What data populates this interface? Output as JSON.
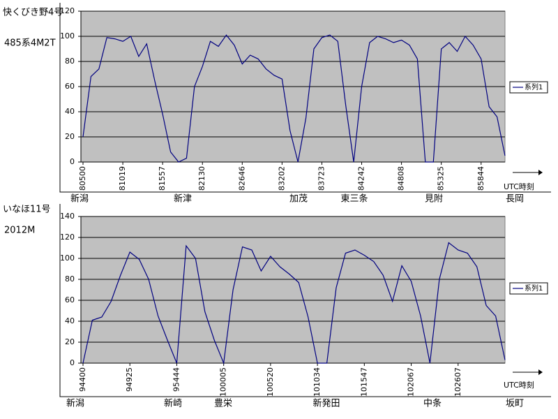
{
  "chart_data": [
    {
      "type": "line",
      "title": "快くびき野4号",
      "subtitle": "485系4M2T",
      "categories": [
        "80500",
        null,
        null,
        null,
        null,
        "81019",
        null,
        null,
        null,
        null,
        "81557",
        null,
        null,
        null,
        null,
        "82130",
        null,
        null,
        null,
        null,
        "82646",
        null,
        null,
        null,
        null,
        "83202",
        null,
        null,
        null,
        null,
        "83723",
        null,
        null,
        null,
        null,
        "84242",
        null,
        null,
        null,
        null,
        "84808",
        null,
        null,
        null,
        null,
        "85325",
        null,
        null,
        null,
        null,
        "85844",
        null,
        null,
        null
      ],
      "series": [
        {
          "name": "系列1",
          "color": "#000080",
          "values": [
            20,
            68,
            74,
            99,
            98,
            96,
            100,
            84,
            94,
            65,
            38,
            8,
            0,
            3,
            60,
            76,
            96,
            92,
            101,
            93,
            78,
            85,
            82,
            74,
            69,
            66,
            25,
            0,
            35,
            90,
            99,
            101,
            96,
            45,
            0,
            60,
            95,
            100,
            98,
            95,
            97,
            93,
            82,
            0,
            0,
            90,
            95,
            88,
            100,
            93,
            82,
            44,
            36,
            5
          ]
        }
      ],
      "ylim": [
        0,
        120
      ],
      "yticks": [
        0,
        20,
        40,
        60,
        80,
        100,
        120
      ],
      "grid": true,
      "legend": "right",
      "x_label": "UTC時刻",
      "annotations": [
        "新潟",
        "新津",
        "加茂",
        "東三条",
        "見附",
        "長岡"
      ]
    },
    {
      "type": "line",
      "title": "いなほ11号",
      "subtitle": "2012M",
      "categories": [
        "94400",
        null,
        null,
        null,
        null,
        "94925",
        null,
        null,
        null,
        null,
        "95444",
        null,
        null,
        null,
        null,
        "100005",
        null,
        null,
        null,
        null,
        "100520",
        null,
        null,
        null,
        null,
        "101034",
        null,
        null,
        null,
        null,
        "101547",
        null,
        null,
        null,
        null,
        "102067",
        null,
        null,
        null,
        null,
        "102607",
        null,
        null,
        null,
        null,
        null
      ],
      "series": [
        {
          "name": "系列1",
          "color": "#000080",
          "values": [
            0,
            41,
            44,
            59,
            84,
            106,
            99,
            80,
            45,
            22,
            0,
            112,
            100,
            49,
            22,
            0,
            70,
            111,
            108,
            88,
            102,
            92,
            85,
            77,
            44,
            0,
            0,
            72,
            105,
            108,
            103,
            97,
            84,
            59,
            93,
            78,
            45,
            0,
            80,
            115,
            108,
            105,
            92,
            55,
            45,
            3
          ]
        }
      ],
      "ylim": [
        0,
        140
      ],
      "yticks": [
        0,
        20,
        40,
        60,
        80,
        100,
        120,
        140
      ],
      "grid": true,
      "legend": "right",
      "x_label": "UTC時刻",
      "annotations": [
        "新潟",
        "新崎",
        "豊栄",
        "新発田",
        "中条",
        "坂町"
      ]
    }
  ]
}
